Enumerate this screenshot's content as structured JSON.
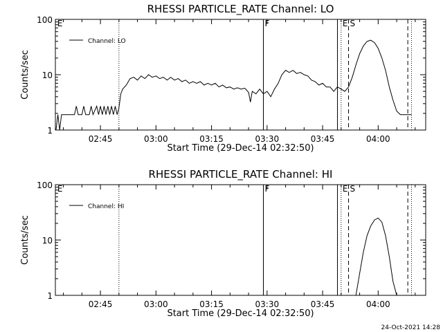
{
  "footer_timestamp": "24-Oct-2021 14:28",
  "chart_data": [
    {
      "type": "line",
      "title": "RHESSI PARTICLE_RATE Channel: LO",
      "xlabel": "Start Time (29-Dec-14 02:32:50)",
      "ylabel": "Counts/sec",
      "yscale": "log",
      "ylim": [
        1,
        100
      ],
      "xlim": [
        "02:32:50",
        "04:12:50"
      ],
      "x_ticks": [
        "02:45",
        "03:00",
        "03:15",
        "03:30",
        "03:45",
        "04:00"
      ],
      "y_ticks": [
        "1",
        "10",
        "100"
      ],
      "legend": {
        "entries": [
          "Channel: LO"
        ],
        "placement": "top-left"
      },
      "markers": [
        {
          "label": "E",
          "time": "02:33",
          "style": "none"
        },
        {
          "label": "",
          "time": "02:50",
          "style": "dotted"
        },
        {
          "label": "F",
          "time": "03:29",
          "style": "solid"
        },
        {
          "label": "",
          "time": "03:49",
          "style": "solid"
        },
        {
          "label": "E",
          "time": "03:50",
          "style": "dotted"
        },
        {
          "label": "S",
          "time": "03:52",
          "style": "dashed"
        },
        {
          "label": "",
          "time": "04:08",
          "style": "dashed"
        },
        {
          "label": "",
          "time": "04:09",
          "style": "dotted"
        }
      ],
      "series": [
        {
          "name": "Channel: LO",
          "points": [
            [
              "02:33",
              1.0
            ],
            [
              "02:33:30",
              1.9
            ],
            [
              "02:34",
              1.0
            ],
            [
              "02:34:30",
              1.9
            ],
            [
              "02:35",
              1.9
            ],
            [
              "02:36",
              1.9
            ],
            [
              "02:37",
              1.9
            ],
            [
              "02:38",
              1.9
            ],
            [
              "02:38:30",
              2.7
            ],
            [
              "02:39",
              1.9
            ],
            [
              "02:40",
              1.9
            ],
            [
              "02:40:30",
              2.7
            ],
            [
              "02:41",
              1.9
            ],
            [
              "02:42",
              1.9
            ],
            [
              "02:42:30",
              2.7
            ],
            [
              "02:43",
              1.9
            ],
            [
              "02:44",
              2.7
            ],
            [
              "02:44:30",
              1.9
            ],
            [
              "02:45",
              2.7
            ],
            [
              "02:45:30",
              1.9
            ],
            [
              "02:46",
              2.7
            ],
            [
              "02:46:30",
              1.9
            ],
            [
              "02:47",
              2.7
            ],
            [
              "02:47:30",
              1.9
            ],
            [
              "02:48",
              2.7
            ],
            [
              "02:48:30",
              1.9
            ],
            [
              "02:49",
              2.7
            ],
            [
              "02:49:30",
              1.9
            ],
            [
              "02:50",
              2.5
            ],
            [
              "02:50:30",
              4.5
            ],
            [
              "02:51",
              5.5
            ],
            [
              "02:52",
              6.5
            ],
            [
              "02:53",
              8.5
            ],
            [
              "02:54",
              9.0
            ],
            [
              "02:55",
              8.0
            ],
            [
              "02:56",
              9.5
            ],
            [
              "02:57",
              8.5
            ],
            [
              "02:58",
              10.0
            ],
            [
              "02:59",
              9.0
            ],
            [
              "03:00",
              9.5
            ],
            [
              "03:01",
              8.5
            ],
            [
              "03:02",
              9.0
            ],
            [
              "03:03",
              8.0
            ],
            [
              "03:04",
              9.0
            ],
            [
              "03:05",
              8.0
            ],
            [
              "03:06",
              8.5
            ],
            [
              "03:07",
              7.5
            ],
            [
              "03:08",
              8.0
            ],
            [
              "03:09",
              7.0
            ],
            [
              "03:10",
              7.5
            ],
            [
              "03:11",
              7.0
            ],
            [
              "03:12",
              7.5
            ],
            [
              "03:13",
              6.5
            ],
            [
              "03:14",
              7.0
            ],
            [
              "03:15",
              6.5
            ],
            [
              "03:16",
              7.0
            ],
            [
              "03:17",
              6.0
            ],
            [
              "03:18",
              6.5
            ],
            [
              "03:19",
              5.8
            ],
            [
              "03:20",
              6.0
            ],
            [
              "03:21",
              5.5
            ],
            [
              "03:22",
              5.8
            ],
            [
              "03:23",
              5.5
            ],
            [
              "03:24",
              5.7
            ],
            [
              "03:25",
              4.8
            ],
            [
              "03:25:30",
              3.2
            ],
            [
              "03:26",
              5.0
            ],
            [
              "03:27",
              4.5
            ],
            [
              "03:28",
              5.5
            ],
            [
              "03:29",
              4.5
            ],
            [
              "03:30",
              5.0
            ],
            [
              "03:31",
              4.0
            ],
            [
              "03:32",
              5.5
            ],
            [
              "03:33",
              7.0
            ],
            [
              "03:34",
              10.0
            ],
            [
              "03:35",
              12.0
            ],
            [
              "03:36",
              11.0
            ],
            [
              "03:37",
              12.0
            ],
            [
              "03:38",
              10.5
            ],
            [
              "03:39",
              11.0
            ],
            [
              "03:40",
              10.0
            ],
            [
              "03:41",
              9.5
            ],
            [
              "03:42",
              8.0
            ],
            [
              "03:43",
              7.5
            ],
            [
              "03:44",
              6.5
            ],
            [
              "03:45",
              7.0
            ],
            [
              "03:46",
              6.0
            ],
            [
              "03:47",
              6.0
            ],
            [
              "03:48",
              5.0
            ],
            [
              "03:49",
              6.0
            ],
            [
              "03:50",
              5.5
            ],
            [
              "03:51",
              5.0
            ],
            [
              "03:52",
              6.0
            ],
            [
              "03:53",
              9.0
            ],
            [
              "03:54",
              15.0
            ],
            [
              "03:55",
              24.0
            ],
            [
              "03:56",
              33.0
            ],
            [
              "03:57",
              40.0
            ],
            [
              "03:58",
              42.0
            ],
            [
              "03:59",
              38.0
            ],
            [
              "04:00",
              30.0
            ],
            [
              "04:01",
              20.0
            ],
            [
              "04:02",
              12.0
            ],
            [
              "04:03",
              6.0
            ],
            [
              "04:04",
              3.5
            ],
            [
              "04:05",
              2.2
            ],
            [
              "04:06",
              1.9
            ],
            [
              "04:07",
              1.9
            ],
            [
              "04:08",
              1.9
            ],
            [
              "04:09",
              1.9
            ]
          ]
        }
      ]
    },
    {
      "type": "line",
      "title": "RHESSI PARTICLE_RATE Channel: HI",
      "xlabel": "Start Time (29-Dec-14 02:32:50)",
      "ylabel": "Counts/sec",
      "yscale": "log",
      "ylim": [
        1,
        100
      ],
      "xlim": [
        "02:32:50",
        "04:12:50"
      ],
      "x_ticks": [
        "02:45",
        "03:00",
        "03:15",
        "03:30",
        "03:45",
        "04:00"
      ],
      "y_ticks": [
        "1",
        "10",
        "100"
      ],
      "legend": {
        "entries": [
          "Channel: HI"
        ],
        "placement": "top-left"
      },
      "markers": [
        {
          "label": "E",
          "time": "02:33",
          "style": "none"
        },
        {
          "label": "",
          "time": "02:50",
          "style": "dotted"
        },
        {
          "label": "F",
          "time": "03:29",
          "style": "solid"
        },
        {
          "label": "",
          "time": "03:49",
          "style": "solid"
        },
        {
          "label": "E",
          "time": "03:50",
          "style": "dotted"
        },
        {
          "label": "S",
          "time": "03:52",
          "style": "dashed"
        },
        {
          "label": "",
          "time": "04:08",
          "style": "dashed"
        },
        {
          "label": "",
          "time": "04:09",
          "style": "dotted"
        }
      ],
      "series": [
        {
          "name": "Channel: HI",
          "points": [
            [
              "03:54",
              1.0
            ],
            [
              "03:55",
              2.5
            ],
            [
              "03:56",
              6.0
            ],
            [
              "03:57",
              12.0
            ],
            [
              "03:58",
              18.0
            ],
            [
              "03:59",
              23.0
            ],
            [
              "04:00",
              25.0
            ],
            [
              "04:01",
              21.0
            ],
            [
              "04:02",
              12.0
            ],
            [
              "04:03",
              5.0
            ],
            [
              "04:04",
              1.8
            ],
            [
              "04:05",
              1.0
            ]
          ]
        }
      ]
    }
  ]
}
